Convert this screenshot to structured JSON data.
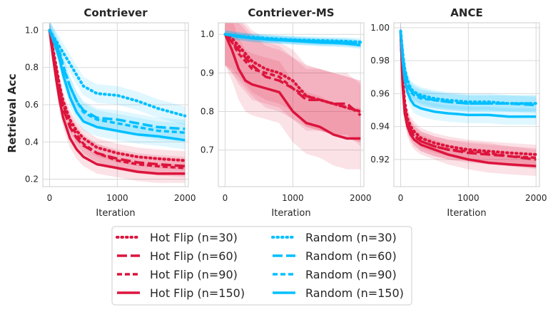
{
  "chart_data": [
    {
      "type": "line",
      "title": "Contriever",
      "xlabel": "Iteration",
      "ylabel": "Retrieval Acc",
      "xlim": [
        -100,
        2050
      ],
      "ylim": [
        0.16,
        1.04
      ],
      "xticks": [
        0,
        1000,
        2000
      ],
      "xtick_labels": [
        "0",
        "1000",
        "2000"
      ],
      "yticks": [
        0.2,
        0.4,
        0.6,
        0.8,
        1.0
      ],
      "ytick_labels": [
        "0.2",
        "0.4",
        "0.6",
        "0.8",
        "1.0"
      ],
      "grid": true,
      "x": [
        0,
        50,
        100,
        150,
        200,
        300,
        400,
        500,
        700,
        1000,
        1300,
        1600,
        2000
      ],
      "series": [
        {
          "name": "Hot Flip (n=30)",
          "group": "hotflip",
          "style": "dotted",
          "values": [
            1.0,
            0.9,
            0.8,
            0.7,
            0.62,
            0.52,
            0.46,
            0.42,
            0.37,
            0.34,
            0.32,
            0.31,
            0.3
          ],
          "band": 0.05
        },
        {
          "name": "Hot Flip (n=60)",
          "group": "hotflip",
          "style": "longdash",
          "values": [
            1.0,
            0.88,
            0.77,
            0.67,
            0.58,
            0.48,
            0.42,
            0.38,
            0.34,
            0.31,
            0.29,
            0.28,
            0.27
          ],
          "band": 0.05
        },
        {
          "name": "Hot Flip (n=90)",
          "group": "hotflip",
          "style": "dashed",
          "values": [
            1.0,
            0.89,
            0.78,
            0.69,
            0.6,
            0.5,
            0.44,
            0.39,
            0.34,
            0.3,
            0.28,
            0.27,
            0.26
          ],
          "band": 0.05
        },
        {
          "name": "Hot Flip (n=150)",
          "group": "hotflip",
          "style": "solid",
          "values": [
            1.0,
            0.86,
            0.73,
            0.62,
            0.53,
            0.42,
            0.36,
            0.32,
            0.28,
            0.26,
            0.24,
            0.23,
            0.23
          ],
          "band": 0.05
        },
        {
          "name": "Random (n=30)",
          "group": "random",
          "style": "dotted",
          "values": [
            1.0,
            0.97,
            0.94,
            0.91,
            0.88,
            0.82,
            0.76,
            0.7,
            0.66,
            0.65,
            0.62,
            0.58,
            0.54
          ],
          "band": 0.05
        },
        {
          "name": "Random (n=60)",
          "group": "random",
          "style": "longdash",
          "values": [
            1.0,
            0.96,
            0.92,
            0.87,
            0.8,
            0.7,
            0.62,
            0.57,
            0.53,
            0.52,
            0.5,
            0.48,
            0.47
          ],
          "band": 0.05
        },
        {
          "name": "Random (n=90)",
          "group": "random",
          "style": "dashed",
          "values": [
            1.0,
            0.97,
            0.93,
            0.88,
            0.81,
            0.7,
            0.62,
            0.56,
            0.52,
            0.5,
            0.48,
            0.46,
            0.45
          ],
          "band": 0.05
        },
        {
          "name": "Random (n=150)",
          "group": "random",
          "style": "solid",
          "values": [
            1.0,
            0.95,
            0.9,
            0.84,
            0.76,
            0.64,
            0.56,
            0.51,
            0.48,
            0.46,
            0.44,
            0.43,
            0.41
          ],
          "band": 0.05
        }
      ]
    },
    {
      "type": "line",
      "title": "Contriever-MS",
      "xlabel": "Iteration",
      "ylabel": "",
      "xlim": [
        -100,
        2050
      ],
      "ylim": [
        0.605,
        1.03
      ],
      "xticks": [
        0,
        1000,
        2000
      ],
      "xtick_labels": [
        "0",
        "1000",
        "2000"
      ],
      "yticks": [
        0.7,
        0.8,
        0.9,
        1.0
      ],
      "ytick_labels": [
        "0.7",
        "0.8",
        "0.9",
        "1.0"
      ],
      "grid": true,
      "x": [
        0,
        100,
        200,
        300,
        400,
        600,
        800,
        1000,
        1200,
        1400,
        1600,
        1800,
        2000
      ],
      "series": [
        {
          "name": "Hot Flip (n=30)",
          "group": "hotflip",
          "style": "dotted",
          "values": [
            1.0,
            0.99,
            0.97,
            0.95,
            0.93,
            0.91,
            0.9,
            0.88,
            0.84,
            0.83,
            0.82,
            0.81,
            0.8
          ],
          "band": 0.08
        },
        {
          "name": "Hot Flip (n=60)",
          "group": "hotflip",
          "style": "longdash",
          "values": [
            1.0,
            0.98,
            0.96,
            0.94,
            0.92,
            0.89,
            0.88,
            0.86,
            0.83,
            0.83,
            0.82,
            0.82,
            0.79
          ],
          "band": 0.08
        },
        {
          "name": "Hot Flip (n=90)",
          "group": "hotflip",
          "style": "dashed",
          "values": [
            1.0,
            0.98,
            0.95,
            0.93,
            0.91,
            0.9,
            0.89,
            0.86,
            0.84,
            0.83,
            0.82,
            0.81,
            0.8
          ],
          "band": 0.08
        },
        {
          "name": "Hot Flip (n=150)",
          "group": "hotflip",
          "style": "solid",
          "values": [
            1.0,
            0.96,
            0.91,
            0.88,
            0.87,
            0.86,
            0.85,
            0.8,
            0.77,
            0.76,
            0.74,
            0.73,
            0.73
          ],
          "band": 0.08
        },
        {
          "name": "Random (n=30)",
          "group": "random",
          "style": "dotted",
          "values": [
            1.0,
            0.998,
            0.996,
            0.994,
            0.993,
            0.99,
            0.988,
            0.986,
            0.985,
            0.984,
            0.983,
            0.982,
            0.98
          ],
          "band": 0.01
        },
        {
          "name": "Random (n=60)",
          "group": "random",
          "style": "longdash",
          "values": [
            1.0,
            0.998,
            0.995,
            0.993,
            0.991,
            0.989,
            0.987,
            0.985,
            0.983,
            0.982,
            0.981,
            0.98,
            0.976
          ],
          "band": 0.01
        },
        {
          "name": "Random (n=90)",
          "group": "random",
          "style": "dashed",
          "values": [
            1.0,
            0.997,
            0.995,
            0.993,
            0.99,
            0.988,
            0.986,
            0.984,
            0.982,
            0.98,
            0.979,
            0.978,
            0.975
          ],
          "band": 0.01
        },
        {
          "name": "Random (n=150)",
          "group": "random",
          "style": "solid",
          "values": [
            1.0,
            0.997,
            0.994,
            0.992,
            0.99,
            0.987,
            0.985,
            0.983,
            0.981,
            0.979,
            0.978,
            0.976,
            0.972
          ],
          "band": 0.01
        }
      ]
    },
    {
      "type": "line",
      "title": "ANCE",
      "xlabel": "Iteration",
      "ylabel": "",
      "xlim": [
        -100,
        2050
      ],
      "ylim": [
        0.9035,
        1.003
      ],
      "xticks": [
        0,
        1000,
        2000
      ],
      "xtick_labels": [
        "0",
        "1000",
        "2000"
      ],
      "yticks": [
        0.92,
        0.94,
        0.96,
        0.98,
        1.0
      ],
      "ytick_labels": [
        "0.92",
        "0.94",
        "0.96",
        "0.98",
        "1.00"
      ],
      "grid": true,
      "x": [
        0,
        30,
        60,
        100,
        150,
        200,
        300,
        500,
        700,
        1000,
        1300,
        1600,
        2000
      ],
      "series": [
        {
          "name": "Hot Flip (n=30)",
          "group": "hotflip",
          "style": "dotted",
          "values": [
            0.998,
            0.97,
            0.955,
            0.945,
            0.94,
            0.937,
            0.933,
            0.93,
            0.928,
            0.926,
            0.925,
            0.924,
            0.923
          ],
          "band": 0.006
        },
        {
          "name": "Hot Flip (n=60)",
          "group": "hotflip",
          "style": "longdash",
          "values": [
            0.998,
            0.968,
            0.952,
            0.943,
            0.938,
            0.935,
            0.931,
            0.928,
            0.926,
            0.924,
            0.923,
            0.922,
            0.92
          ],
          "band": 0.006
        },
        {
          "name": "Hot Flip (n=90)",
          "group": "hotflip",
          "style": "dashed",
          "values": [
            0.998,
            0.967,
            0.951,
            0.942,
            0.937,
            0.934,
            0.931,
            0.928,
            0.926,
            0.925,
            0.924,
            0.922,
            0.921
          ],
          "band": 0.006
        },
        {
          "name": "Hot Flip (n=150)",
          "group": "hotflip",
          "style": "solid",
          "values": [
            0.998,
            0.965,
            0.948,
            0.94,
            0.935,
            0.932,
            0.929,
            0.926,
            0.923,
            0.92,
            0.918,
            0.917,
            0.916
          ],
          "band": 0.006
        },
        {
          "name": "Random (n=30)",
          "group": "random",
          "style": "dotted",
          "values": [
            0.998,
            0.985,
            0.975,
            0.968,
            0.963,
            0.961,
            0.959,
            0.957,
            0.956,
            0.955,
            0.955,
            0.954,
            0.954
          ],
          "band": 0.005
        },
        {
          "name": "Random (n=60)",
          "group": "random",
          "style": "longdash",
          "values": [
            0.998,
            0.984,
            0.974,
            0.967,
            0.962,
            0.96,
            0.958,
            0.956,
            0.955,
            0.954,
            0.954,
            0.954,
            0.953
          ],
          "band": 0.005
        },
        {
          "name": "Random (n=90)",
          "group": "random",
          "style": "dashed",
          "values": [
            0.998,
            0.983,
            0.973,
            0.966,
            0.961,
            0.959,
            0.957,
            0.956,
            0.955,
            0.954,
            0.954,
            0.954,
            0.954
          ],
          "band": 0.005
        },
        {
          "name": "Random (n=150)",
          "group": "random",
          "style": "solid",
          "values": [
            0.998,
            0.98,
            0.968,
            0.961,
            0.956,
            0.953,
            0.951,
            0.949,
            0.948,
            0.947,
            0.947,
            0.946,
            0.946
          ],
          "band": 0.005
        }
      ]
    }
  ],
  "colors": {
    "hotflip": "#dc143c",
    "random": "#00bfff",
    "grid": "#d9d9d9",
    "frame": "#cccccc"
  },
  "legend": {
    "placement": "bottom-center",
    "columns": 2,
    "entries": [
      {
        "label": "Hot Flip (n=30)",
        "group": "hotflip",
        "style": "dotted"
      },
      {
        "label": "Hot Flip (n=60)",
        "group": "hotflip",
        "style": "longdash"
      },
      {
        "label": "Hot Flip (n=90)",
        "group": "hotflip",
        "style": "dashed"
      },
      {
        "label": "Hot Flip (n=150)",
        "group": "hotflip",
        "style": "solid"
      },
      {
        "label": "Random (n=30)",
        "group": "random",
        "style": "dotted"
      },
      {
        "label": "Random (n=60)",
        "group": "random",
        "style": "longdash"
      },
      {
        "label": "Random (n=90)",
        "group": "random",
        "style": "dashed"
      },
      {
        "label": "Random (n=150)",
        "group": "random",
        "style": "solid"
      }
    ]
  }
}
